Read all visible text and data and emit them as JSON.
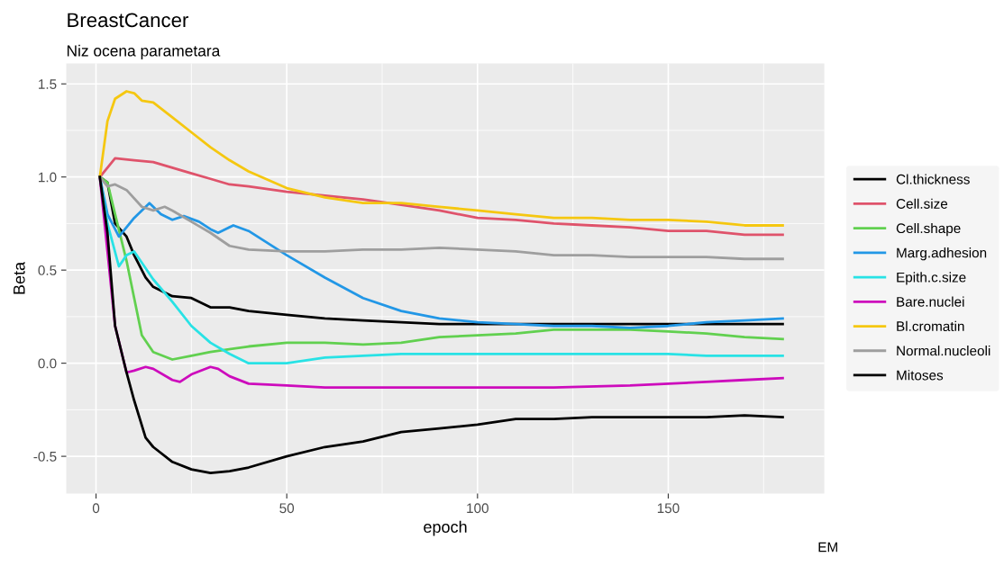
{
  "chart_data": {
    "type": "line",
    "title": "BreastCancer",
    "subtitle": "Niz ocena parametara",
    "xlabel": "epoch",
    "ylabel": "Beta",
    "annotations": [
      "EM"
    ],
    "xlim": [
      -7.8,
      190.9
    ],
    "ylim": [
      -0.7,
      1.61
    ],
    "xticks": [
      0,
      50,
      100,
      150
    ],
    "yticks": [
      {
        "value": -0.5,
        "label": "-0.5"
      },
      {
        "value": 0,
        "label": "0.0"
      },
      {
        "value": 0.5,
        "label": "0.5"
      },
      {
        "value": 1,
        "label": "1.0"
      },
      {
        "value": 1.5,
        "label": "1.5"
      }
    ],
    "grid": true,
    "legend": "right",
    "line_style": "solid",
    "marker": "none",
    "series": [
      {
        "name": "Cl.thickness",
        "color": "#000000",
        "x": [
          1,
          3,
          5,
          8,
          10,
          13,
          15,
          20,
          25,
          30,
          35,
          40,
          50,
          60,
          70,
          80,
          90,
          100,
          120,
          150,
          180
        ],
        "values": [
          1.0,
          0.97,
          0.75,
          0.68,
          0.58,
          0.46,
          0.41,
          0.36,
          0.35,
          0.3,
          0.3,
          0.28,
          0.26,
          0.24,
          0.23,
          0.22,
          0.21,
          0.21,
          0.21,
          0.21,
          0.21
        ]
      },
      {
        "name": "Cell.size",
        "color": "#df536b",
        "x": [
          1,
          3,
          5,
          10,
          15,
          20,
          25,
          30,
          35,
          40,
          50,
          60,
          70,
          80,
          90,
          100,
          110,
          120,
          130,
          140,
          150,
          160,
          170,
          180
        ],
        "values": [
          1.0,
          1.05,
          1.1,
          1.09,
          1.08,
          1.05,
          1.02,
          0.99,
          0.96,
          0.95,
          0.92,
          0.9,
          0.88,
          0.85,
          0.82,
          0.78,
          0.77,
          0.75,
          0.74,
          0.73,
          0.71,
          0.71,
          0.69,
          0.69
        ]
      },
      {
        "name": "Cell.shape",
        "color": "#61d04f",
        "x": [
          1,
          3,
          5,
          8,
          10,
          12,
          15,
          20,
          25,
          30,
          40,
          50,
          60,
          70,
          80,
          90,
          100,
          110,
          120,
          130,
          140,
          150,
          160,
          170,
          180
        ],
        "values": [
          1.0,
          0.97,
          0.8,
          0.55,
          0.35,
          0.15,
          0.06,
          0.02,
          0.04,
          0.06,
          0.09,
          0.11,
          0.11,
          0.1,
          0.11,
          0.14,
          0.15,
          0.16,
          0.18,
          0.18,
          0.18,
          0.17,
          0.16,
          0.14,
          0.13
        ]
      },
      {
        "name": "Marg.adhesion",
        "color": "#2297e6",
        "x": [
          1,
          3,
          6,
          10,
          14,
          17,
          20,
          23,
          27,
          30,
          32,
          36,
          40,
          50,
          60,
          70,
          80,
          90,
          100,
          110,
          120,
          130,
          140,
          150,
          160,
          170,
          180
        ],
        "values": [
          1.0,
          0.8,
          0.68,
          0.78,
          0.86,
          0.8,
          0.77,
          0.79,
          0.76,
          0.72,
          0.7,
          0.74,
          0.71,
          0.58,
          0.46,
          0.35,
          0.28,
          0.24,
          0.22,
          0.21,
          0.2,
          0.2,
          0.19,
          0.2,
          0.22,
          0.23,
          0.24
        ]
      },
      {
        "name": "Epith.c.size",
        "color": "#28e2e5",
        "x": [
          1,
          3,
          6,
          8,
          10,
          15,
          20,
          25,
          30,
          35,
          40,
          50,
          60,
          70,
          80,
          90,
          100,
          120,
          150,
          160,
          180
        ],
        "values": [
          1.0,
          0.75,
          0.52,
          0.58,
          0.6,
          0.45,
          0.33,
          0.2,
          0.11,
          0.05,
          0.0,
          0.0,
          0.03,
          0.04,
          0.05,
          0.05,
          0.05,
          0.05,
          0.05,
          0.04,
          0.04
        ]
      },
      {
        "name": "Bare.nuclei",
        "color": "#cd0bbc",
        "x": [
          1,
          3,
          5,
          8,
          10,
          13,
          15,
          20,
          22,
          25,
          30,
          32,
          35,
          40,
          50,
          60,
          80,
          100,
          120,
          140,
          160,
          170,
          180
        ],
        "values": [
          1.0,
          0.6,
          0.2,
          -0.05,
          -0.04,
          -0.02,
          -0.03,
          -0.09,
          -0.1,
          -0.06,
          -0.02,
          -0.03,
          -0.07,
          -0.11,
          -0.12,
          -0.13,
          -0.13,
          -0.13,
          -0.13,
          -0.12,
          -0.1,
          -0.09,
          -0.08
        ]
      },
      {
        "name": "Bl.cromatin",
        "color": "#f5c710",
        "x": [
          1,
          3,
          5,
          8,
          10,
          12,
          15,
          20,
          25,
          30,
          35,
          40,
          50,
          60,
          70,
          80,
          90,
          100,
          110,
          120,
          130,
          140,
          150,
          160,
          170,
          180
        ],
        "values": [
          1.0,
          1.3,
          1.42,
          1.46,
          1.45,
          1.41,
          1.4,
          1.32,
          1.24,
          1.16,
          1.09,
          1.03,
          0.94,
          0.89,
          0.86,
          0.86,
          0.84,
          0.82,
          0.8,
          0.78,
          0.78,
          0.77,
          0.77,
          0.76,
          0.74,
          0.74
        ]
      },
      {
        "name": "Normal.nucleoli",
        "color": "#9e9e9e",
        "x": [
          1,
          3,
          5,
          8,
          12,
          15,
          18,
          20,
          25,
          30,
          35,
          40,
          50,
          60,
          70,
          80,
          90,
          100,
          110,
          120,
          130,
          140,
          150,
          160,
          170,
          180
        ],
        "values": [
          1.0,
          0.95,
          0.96,
          0.93,
          0.84,
          0.82,
          0.84,
          0.82,
          0.76,
          0.7,
          0.63,
          0.61,
          0.6,
          0.6,
          0.61,
          0.61,
          0.62,
          0.61,
          0.6,
          0.58,
          0.58,
          0.57,
          0.57,
          0.57,
          0.56,
          0.56
        ]
      },
      {
        "name": "Mitoses",
        "color": "#000000",
        "x": [
          1,
          3,
          5,
          8,
          10,
          13,
          15,
          20,
          25,
          30,
          35,
          40,
          50,
          60,
          70,
          80,
          90,
          100,
          110,
          120,
          130,
          140,
          150,
          160,
          170,
          180
        ],
        "values": [
          1.0,
          0.7,
          0.2,
          -0.05,
          -0.2,
          -0.4,
          -0.45,
          -0.53,
          -0.57,
          -0.59,
          -0.58,
          -0.56,
          -0.5,
          -0.45,
          -0.42,
          -0.37,
          -0.35,
          -0.33,
          -0.3,
          -0.3,
          -0.29,
          -0.29,
          -0.29,
          -0.29,
          -0.28,
          -0.29
        ]
      }
    ]
  }
}
